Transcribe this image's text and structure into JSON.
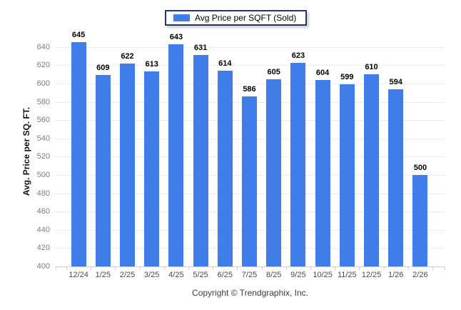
{
  "legend": {
    "label": "Avg Price per SQFT (Sold)"
  },
  "footer": {
    "copyright": "Copyright © Trendgraphix, Inc."
  },
  "colors": {
    "bar": "#3f7ee8",
    "legend_border": "#1f3a64",
    "gridline": "#ebebeb",
    "axis_line": "#c9ccd2",
    "y_tick_text": "#7e7e7e",
    "x_tick_text": "#424b57",
    "value_label_text": "#000000"
  },
  "chart_data": {
    "type": "bar",
    "title": "",
    "series_name": "Avg Price per SQFT (Sold)",
    "categories": [
      "12/24",
      "1/25",
      "2/25",
      "3/25",
      "4/25",
      "5/25",
      "6/25",
      "7/25",
      "8/25",
      "9/25",
      "10/25",
      "11/25",
      "12/25",
      "1/26",
      "2/26"
    ],
    "values": [
      645,
      609,
      622,
      613,
      643,
      631,
      614,
      586,
      605,
      623,
      604,
      599,
      610,
      594,
      500
    ],
    "xlabel": "",
    "ylabel": "Avg. Price per SQ. FT.",
    "ylim": [
      400,
      650
    ],
    "yticks": [
      400,
      420,
      440,
      460,
      480,
      500,
      520,
      540,
      560,
      580,
      600,
      620,
      640
    ],
    "grid": true,
    "legend_position": "top",
    "bar_color": "#3f7ee8"
  }
}
